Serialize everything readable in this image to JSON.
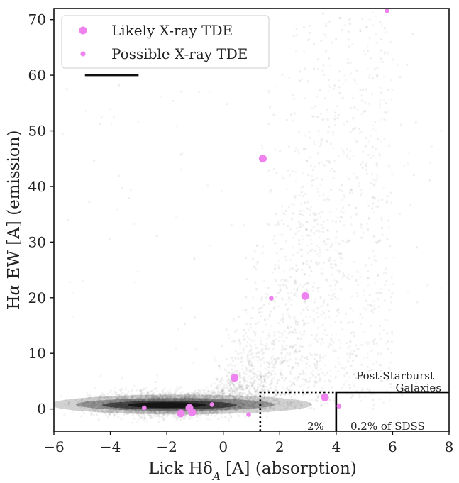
{
  "chart_data": {
    "type": "scatter",
    "xlabel_main": "Lick Hδ",
    "xlabel_sub": "A",
    "xlabel_tail": " [A] (absorption)",
    "ylabel_prefix": "H",
    "ylabel_italic": "α",
    "ylabel_tail": " EW [A] (emission)",
    "xlim": [
      -6,
      8
    ],
    "ylim": [
      -4,
      72
    ],
    "xticks": [
      -6,
      -4,
      -2,
      0,
      2,
      4,
      6,
      8
    ],
    "xtick_labels": [
      "−6",
      "−4",
      "−2",
      "0",
      "2",
      "4",
      "6",
      "8"
    ],
    "yticks": [
      0,
      10,
      20,
      30,
      40,
      50,
      60,
      70
    ],
    "ytick_labels": [
      "0",
      "10",
      "20",
      "30",
      "40",
      "50",
      "60",
      "70"
    ],
    "legend": {
      "placement": "top-left",
      "entries": [
        "Likely X-ray TDE",
        "Possible X-ray TDE"
      ]
    },
    "colors": {
      "tde": "#ee82ee",
      "background": "#9a9a9a",
      "core": "#111111"
    },
    "series": [
      {
        "name": "Likely X-ray TDE",
        "marker": "large",
        "points": [
          {
            "x": 1.4,
            "y": 45.0
          },
          {
            "x": 2.9,
            "y": 20.3
          },
          {
            "x": 0.4,
            "y": 5.6
          },
          {
            "x": 3.6,
            "y": 2.1
          },
          {
            "x": -1.2,
            "y": 0.2
          },
          {
            "x": -1.1,
            "y": -0.6
          },
          {
            "x": -1.5,
            "y": -0.8
          }
        ]
      },
      {
        "name": "Possible X-ray TDE",
        "marker": "small",
        "points": [
          {
            "x": 5.8,
            "y": 71.6
          },
          {
            "x": 1.7,
            "y": 19.9
          },
          {
            "x": -0.4,
            "y": 0.8
          },
          {
            "x": -2.8,
            "y": 0.2
          },
          {
            "x": 4.1,
            "y": 0.5
          },
          {
            "x": 0.9,
            "y": -1.0
          }
        ]
      }
    ],
    "regions": [
      {
        "name": "post-starburst",
        "style": "solid",
        "x_min": 4.0,
        "y_max": 3.0
      },
      {
        "name": "qbs",
        "style": "dotted",
        "x_min": 1.31,
        "x_max": 4.0,
        "y_max": 3.0
      }
    ],
    "scale_bar": {
      "x": [
        -4.9,
        -3.0
      ],
      "y": 60
    },
    "annotations": {
      "post_starburst_line1": "Post-Starburst",
      "post_starburst_line2": "Galaxies",
      "qbs_percent": "2%",
      "psb_percent": "0.2% of SDSS"
    }
  }
}
